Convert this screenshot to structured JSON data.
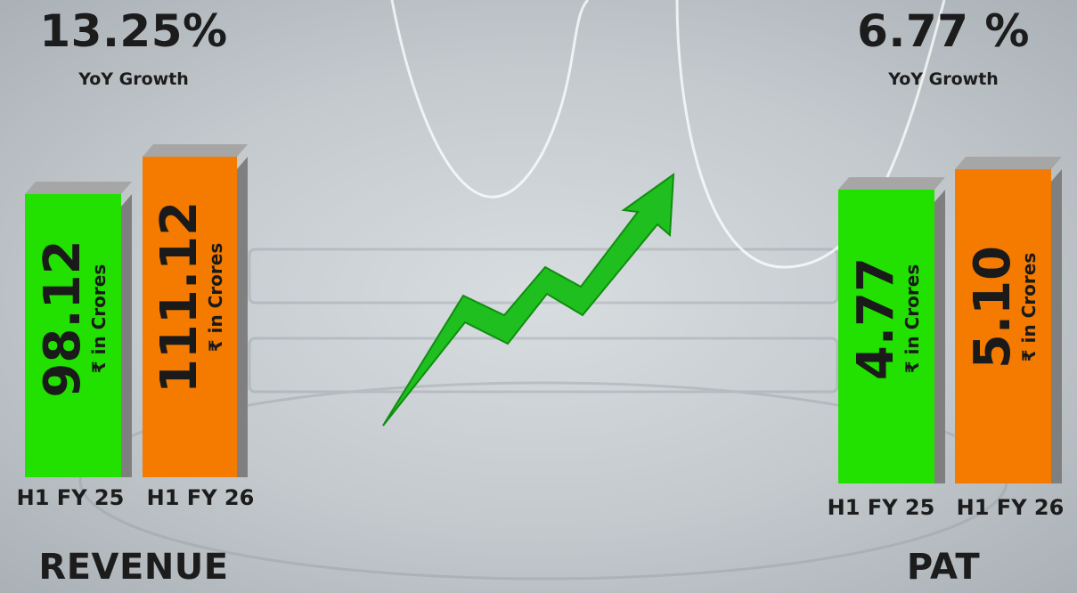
{
  "colors": {
    "fy25": "#22e000",
    "fy26": "#f47b00",
    "arrow": "#1fbf1f"
  },
  "chart_data": [
    {
      "type": "bar",
      "title": "REVENUE",
      "categories": [
        "H1 FY 25",
        "H1 FY 26"
      ],
      "values": [
        98.12,
        111.12
      ],
      "value_labels": [
        "98.12",
        "111.12"
      ],
      "unit_label": "₹ in Crores",
      "growth": {
        "value": "13.25%",
        "label": "YoY Growth"
      },
      "ylim": [
        0,
        125
      ]
    },
    {
      "type": "bar",
      "title": "PAT",
      "categories": [
        "H1 FY 25",
        "H1 FY 26"
      ],
      "values": [
        4.77,
        5.1
      ],
      "value_labels": [
        "4.77",
        "5.10"
      ],
      "unit_label": "₹ in Crores",
      "growth": {
        "value": "6.77 %",
        "label": "YoY Growth"
      },
      "ylim": [
        0,
        5.85
      ]
    }
  ]
}
